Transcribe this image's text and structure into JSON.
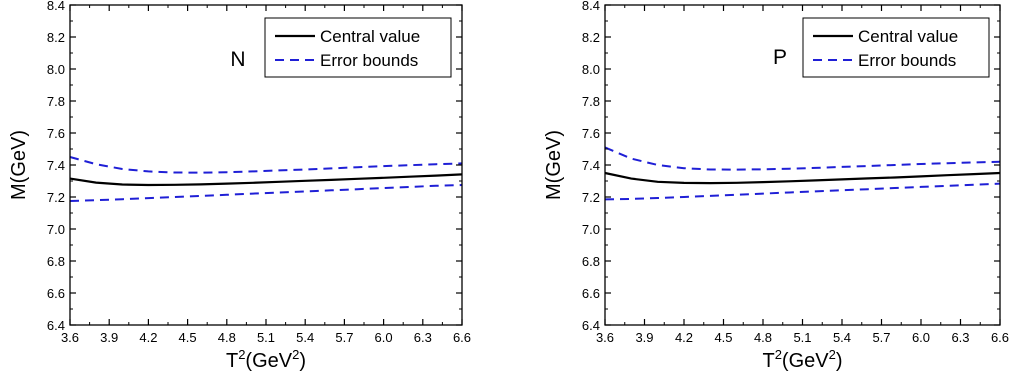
{
  "chart_data": [
    {
      "type": "line",
      "panel_label": "N",
      "xlabel": {
        "base": "T",
        "sup": "2",
        "mid": "(GeV",
        "sup2": "2",
        "end": ")"
      },
      "ylabel": "M(GeV)",
      "xlim": [
        3.6,
        6.6
      ],
      "ylim": [
        6.4,
        8.4
      ],
      "xticks": [
        "3.6",
        "3.9",
        "4.2",
        "4.5",
        "4.8",
        "5.1",
        "5.4",
        "5.7",
        "6.0",
        "6.3",
        "6.6"
      ],
      "yticks": [
        "6.4",
        "6.6",
        "6.8",
        "7.0",
        "7.2",
        "7.4",
        "7.6",
        "7.8",
        "8.0",
        "8.2",
        "8.4"
      ],
      "legend": {
        "position": "top-right",
        "central_label": "Central value",
        "error_label": "Error bounds"
      },
      "series": [
        {
          "name": "Central value",
          "style": "solid",
          "color": "#000000",
          "x": [
            3.6,
            3.8,
            4.0,
            4.2,
            4.4,
            4.6,
            4.8,
            5.0,
            5.2,
            5.4,
            5.6,
            5.8,
            6.0,
            6.2,
            6.4,
            6.6
          ],
          "y": [
            7.315,
            7.29,
            7.278,
            7.275,
            7.276,
            7.279,
            7.284,
            7.289,
            7.295,
            7.301,
            7.307,
            7.314,
            7.32,
            7.327,
            7.334,
            7.341
          ]
        },
        {
          "name": "Error bounds",
          "style": "dashed",
          "color": "#1f1fd6",
          "x": [
            3.6,
            3.8,
            4.0,
            4.2,
            4.4,
            4.6,
            4.8,
            5.0,
            5.2,
            5.4,
            5.6,
            5.8,
            6.0,
            6.2,
            6.4,
            6.6
          ],
          "y": [
            7.45,
            7.405,
            7.375,
            7.36,
            7.353,
            7.352,
            7.355,
            7.36,
            7.366,
            7.372,
            7.379,
            7.386,
            7.393,
            7.399,
            7.405,
            7.41
          ]
        },
        {
          "name": "Error bounds",
          "style": "dashed",
          "color": "#1f1fd6",
          "x": [
            3.6,
            3.8,
            4.0,
            4.2,
            4.4,
            4.6,
            4.8,
            5.0,
            5.2,
            5.4,
            5.6,
            5.8,
            6.0,
            6.2,
            6.4,
            6.6
          ],
          "y": [
            7.175,
            7.18,
            7.186,
            7.193,
            7.2,
            7.207,
            7.214,
            7.221,
            7.228,
            7.235,
            7.242,
            7.249,
            7.256,
            7.263,
            7.27,
            7.275
          ]
        }
      ]
    },
    {
      "type": "line",
      "panel_label": "P",
      "xlabel": {
        "base": "T",
        "sup": "2",
        "mid": "(GeV",
        "sup2": "2",
        "end": ")"
      },
      "ylabel": "M(GeV)",
      "xlim": [
        3.6,
        6.6
      ],
      "ylim": [
        6.4,
        8.4
      ],
      "xticks": [
        "3.6",
        "3.9",
        "4.2",
        "4.5",
        "4.8",
        "5.1",
        "5.4",
        "5.7",
        "6.0",
        "6.3",
        "6.6"
      ],
      "yticks": [
        "6.4",
        "6.6",
        "6.8",
        "7.0",
        "7.2",
        "7.4",
        "7.6",
        "7.8",
        "8.0",
        "8.2",
        "8.4"
      ],
      "legend": {
        "position": "top-right",
        "central_label": "Central value",
        "error_label": "Error bounds"
      },
      "series": [
        {
          "name": "Central value",
          "style": "solid",
          "color": "#000000",
          "x": [
            3.6,
            3.8,
            4.0,
            4.2,
            4.4,
            4.6,
            4.8,
            5.0,
            5.2,
            5.4,
            5.6,
            5.8,
            6.0,
            6.2,
            6.4,
            6.6
          ],
          "y": [
            7.35,
            7.315,
            7.295,
            7.288,
            7.287,
            7.289,
            7.293,
            7.298,
            7.304,
            7.31,
            7.316,
            7.322,
            7.329,
            7.336,
            7.343,
            7.35
          ]
        },
        {
          "name": "Error bounds",
          "style": "dashed",
          "color": "#1f1fd6",
          "x": [
            3.6,
            3.8,
            4.0,
            4.2,
            4.4,
            4.6,
            4.8,
            5.0,
            5.2,
            5.4,
            5.6,
            5.8,
            6.0,
            6.2,
            6.4,
            6.6
          ],
          "y": [
            7.51,
            7.44,
            7.4,
            7.38,
            7.372,
            7.371,
            7.373,
            7.377,
            7.382,
            7.388,
            7.394,
            7.4,
            7.406,
            7.411,
            7.416,
            7.42
          ]
        },
        {
          "name": "Error bounds",
          "style": "dashed",
          "color": "#1f1fd6",
          "x": [
            3.6,
            3.8,
            4.0,
            4.2,
            4.4,
            4.6,
            4.8,
            5.0,
            5.2,
            5.4,
            5.6,
            5.8,
            6.0,
            6.2,
            6.4,
            6.6
          ],
          "y": [
            7.185,
            7.188,
            7.194,
            7.2,
            7.207,
            7.214,
            7.221,
            7.228,
            7.235,
            7.242,
            7.249,
            7.256,
            7.263,
            7.27,
            7.277,
            7.284
          ]
        }
      ]
    }
  ]
}
